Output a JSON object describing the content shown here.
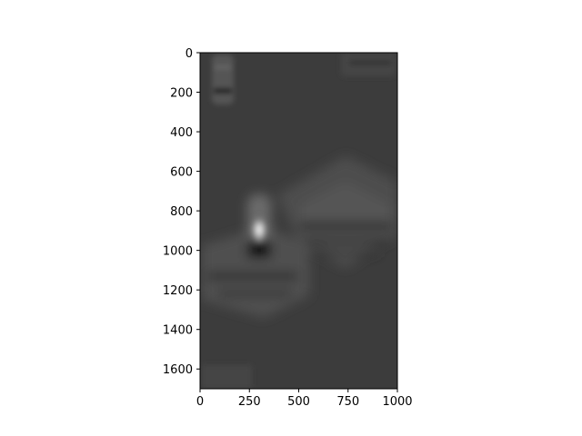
{
  "chart_data": {
    "type": "image",
    "xlim": [
      0,
      1000
    ],
    "ylim": [
      1700,
      0
    ],
    "xticks": [
      0,
      250,
      500,
      750,
      1000
    ],
    "yticks": [
      0,
      200,
      400,
      600,
      800,
      1000,
      1200,
      1400,
      1600
    ]
  }
}
